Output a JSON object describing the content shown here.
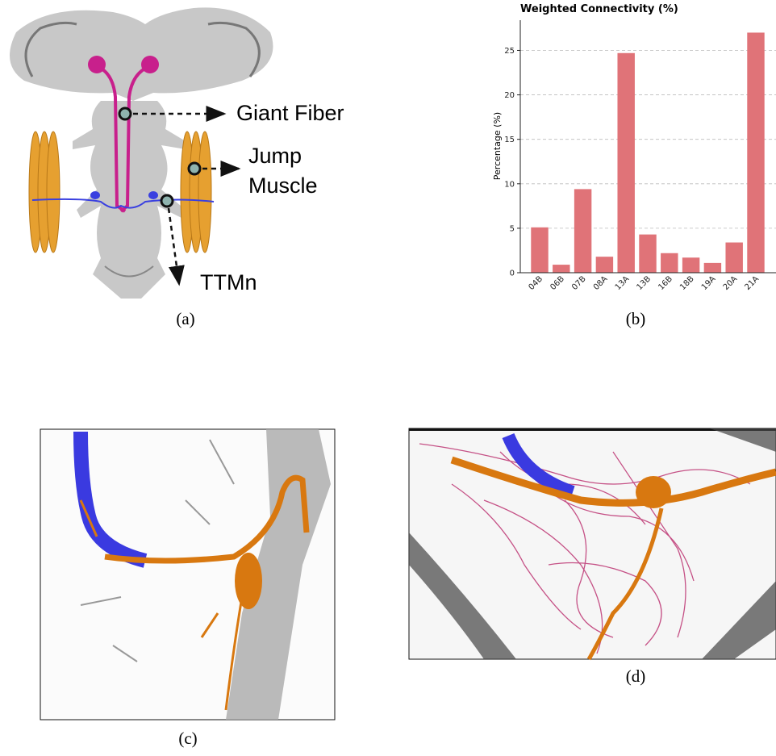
{
  "chart_data": {
    "type": "bar",
    "title": "Weighted Connectivity (%)",
    "ylabel": "Percentage (%)",
    "categories": [
      "04B",
      "06B",
      "07B",
      "08A",
      "13A",
      "13B",
      "16B",
      "18B",
      "19A",
      "20A",
      "21A"
    ],
    "values": [
      5.1,
      0.9,
      9.4,
      1.8,
      24.7,
      4.3,
      2.2,
      1.7,
      1.1,
      3.4,
      27.0
    ],
    "color": "#e07378",
    "ylim": [
      0,
      28.4
    ],
    "yticks": [
      0,
      5,
      10,
      15,
      20,
      25
    ],
    "grid": true
  },
  "panels": {
    "a": {
      "caption": "(a)",
      "giant_fiber": "Giant Fiber",
      "jump_muscle": [
        "Jump",
        "Muscle"
      ],
      "ttmn": "TTMn"
    },
    "b": {
      "caption": "(b)"
    },
    "c": {
      "caption": "(c)"
    },
    "d": {
      "caption": "(d)"
    }
  }
}
